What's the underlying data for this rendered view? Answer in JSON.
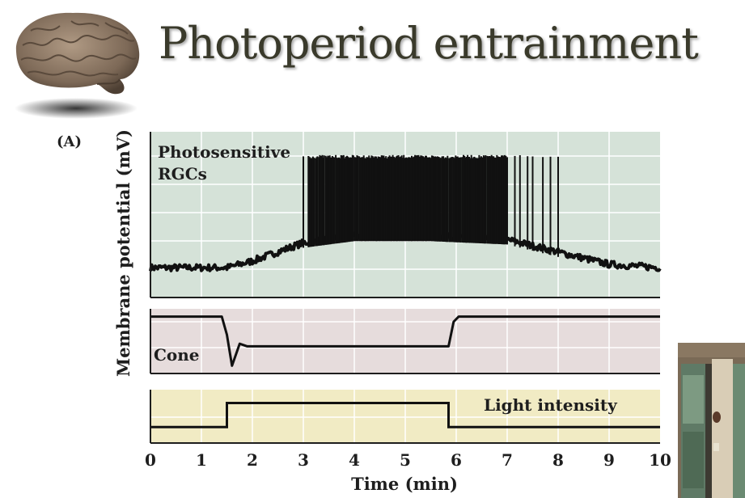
{
  "slide": {
    "title": "Photoperiod entrainment",
    "panel_label": "(A)",
    "brain_icon": "brain-icon",
    "video_thumbnail": "presenter-video-thumbnail"
  },
  "colors": {
    "top_panel_bg": "#d5e2d8",
    "middle_panel_bg": "#e6dcdc",
    "bottom_panel_bg": "#f1ebc4",
    "grid": "#ffffff",
    "trace": "#111111",
    "title": "#3a3a2b"
  },
  "chart_data": {
    "type": "line",
    "xlabel": "Time (min)",
    "ylabel": "Membrane potential (mV)",
    "xlim": [
      0,
      10
    ],
    "xticks": [
      "0",
      "1",
      "2",
      "3",
      "4",
      "5",
      "6",
      "7",
      "8",
      "9",
      "10"
    ],
    "grid": true,
    "panels": [
      {
        "label": "Photosensitive RGCs",
        "label_lines": [
          "Photosensitive",
          "RGCs"
        ],
        "baseline_x": [
          0,
          1.5,
          2.0,
          3.0,
          4.0,
          5.5,
          7.0,
          8.2,
          9.0,
          10.0
        ],
        "baseline_y": [
          0.18,
          0.18,
          0.22,
          0.33,
          0.37,
          0.37,
          0.35,
          0.26,
          0.2,
          0.18
        ],
        "spikes_start": 3.0,
        "spikes_end": 8.0,
        "spike_times": [
          3.0,
          3.1,
          7.15,
          7.25,
          7.4,
          7.5,
          7.7,
          7.85,
          8.0
        ],
        "spike_peak": 0.86,
        "spike_range": [
          3.1,
          7.0
        ]
      },
      {
        "label": "Cone",
        "x": [
          0,
          1.4,
          1.5,
          1.6,
          1.75,
          1.9,
          5.85,
          5.95,
          6.05,
          10.0
        ],
        "y": [
          0.88,
          0.88,
          0.6,
          0.12,
          0.46,
          0.42,
          0.42,
          0.8,
          0.88,
          0.88
        ]
      },
      {
        "label": "Light intensity",
        "x": [
          0,
          1.5,
          1.5,
          5.85,
          5.85,
          10.0
        ],
        "y": [
          0.3,
          0.3,
          0.75,
          0.75,
          0.3,
          0.3
        ]
      }
    ]
  }
}
